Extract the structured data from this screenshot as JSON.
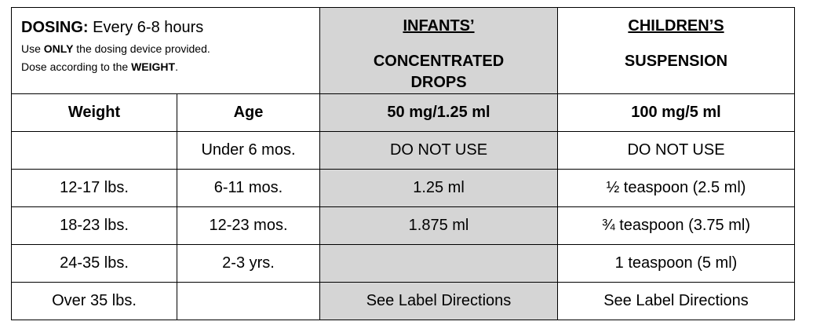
{
  "header": {
    "dosing_label": "DOSING:",
    "dosing_text": "Every 6-8 hours",
    "line2": [
      "Use",
      "ONLY",
      "the dosing device provided."
    ],
    "line3": [
      "Dose according to the",
      "WEIGHT",
      "."
    ]
  },
  "columns": {
    "weight": "Weight",
    "age": "Age",
    "infants": {
      "title": "INFANTS’",
      "name": "CONCENTRATED DROPS",
      "strength": "50 mg/1.25 ml"
    },
    "children": {
      "title": "CHILDREN’S",
      "name": "SUSPENSION",
      "strength": "100 mg/5 ml"
    }
  },
  "rows": [
    [
      null,
      "Under 6 mos.",
      "DO NOT USE",
      "DO NOT USE"
    ],
    [
      "12-17 lbs.",
      "6-11 mos.",
      "1.25 ml",
      "½ teaspoon (2.5 ml)"
    ],
    [
      "18-23 lbs.",
      "12-23 mos.",
      "1.875 ml",
      "¾ teaspoon (3.75 ml)"
    ],
    [
      "24-35 lbs.",
      "2-3 yrs.",
      null,
      "1 teaspoon (5 ml)"
    ],
    [
      "Over 35 lbs.",
      null,
      "See Label Directions",
      "See Label Directions"
    ]
  ]
}
